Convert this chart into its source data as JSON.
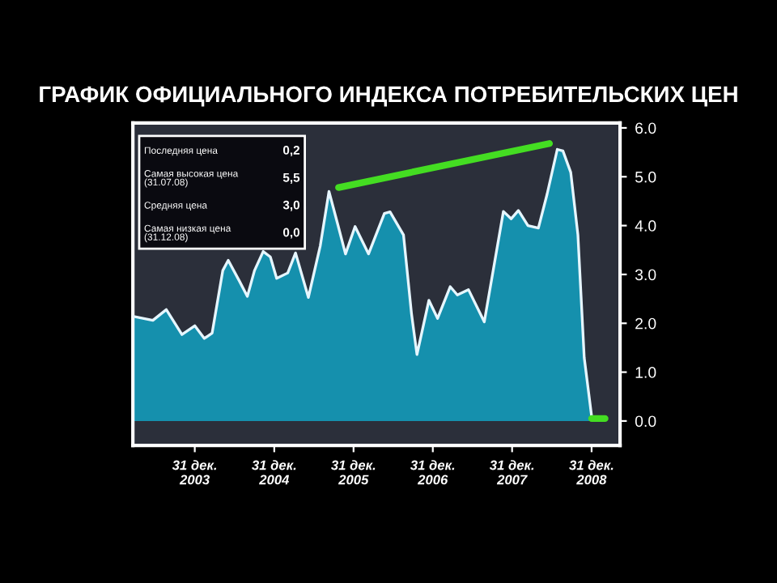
{
  "chart_data": {
    "type": "area",
    "title": "ГРАФИК ОФИЦИАЛЬНОГО ИНДЕКСА ПОТРЕБИТЕЛЬСКИХ ЦЕН",
    "series": [
      {
        "color": "#1590ad",
        "x": [
          "2003-03-25",
          "2003-06-21",
          "2003-08-22",
          "2003-11-02",
          "2003-12-31",
          "2004-02-13",
          "2004-03-20",
          "2004-05-08",
          "2004-06-02",
          "2004-07-24",
          "2004-08-29",
          "2004-10-01",
          "2004-11-10",
          "2004-12-13",
          "2005-01-11",
          "2005-03-03",
          "2005-04-08",
          "2005-06-06",
          "2005-07-31",
          "2005-09-09",
          "2005-10-19",
          "2005-11-24",
          "2006-01-07",
          "2006-03-10",
          "2006-05-22",
          "2006-06-17",
          "2006-08-18",
          "2006-09-24",
          "2006-10-19",
          "2006-12-13",
          "2007-01-22",
          "2007-03-21",
          "2007-04-23",
          "2007-06-13",
          "2007-08-25",
          "2007-11-21",
          "2007-12-27",
          "2008-01-29",
          "2008-03-13",
          "2008-04-30",
          "2008-06-09",
          "2008-07-26",
          "2008-08-21",
          "2008-09-26",
          "2008-10-29",
          "2008-11-27",
          "2008-12-31"
        ],
        "values": [
          2.14,
          2.06,
          2.28,
          1.77,
          1.95,
          1.69,
          1.8,
          3.08,
          3.29,
          2.86,
          2.55,
          3.08,
          3.47,
          3.36,
          2.92,
          3.03,
          3.44,
          2.53,
          3.59,
          4.7,
          4.03,
          3.42,
          3.98,
          3.42,
          4.25,
          4.28,
          3.81,
          2.19,
          1.36,
          2.47,
          2.1,
          2.75,
          2.58,
          2.69,
          2.03,
          4.29,
          4.14,
          4.31,
          4.0,
          3.95,
          4.64,
          5.56,
          5.53,
          5.09,
          3.81,
          1.3,
          0.1
        ]
      },
      {
        "type": "line",
        "color": "#44dd22",
        "x": [
          "2005-10-23",
          "2008-06-20"
        ],
        "values": [
          4.78,
          5.68
        ]
      },
      {
        "type": "line",
        "color": "#44dd22",
        "x": [
          "2008-12-31",
          "2009-03-03"
        ],
        "values": [
          0.05,
          0.05
        ]
      }
    ],
    "xlim": [
      "2003-03-21",
      "2009-05-11"
    ],
    "ylim": [
      -0.5,
      6.1
    ],
    "xticks": [
      {
        "value": "2003-12-31",
        "label": "31 дек.\n2003"
      },
      {
        "value": "2004-12-31",
        "label": "31 дек.\n2004"
      },
      {
        "value": "2005-12-31",
        "label": "31 дек.\n2005"
      },
      {
        "value": "2006-12-31",
        "label": "31 дек.\n2006"
      },
      {
        "value": "2007-12-31",
        "label": "31 дек.\n2007"
      },
      {
        "value": "2008-12-31",
        "label": "31 дек.\n2008"
      }
    ],
    "yticks": [
      {
        "value": 0,
        "label": "0.0"
      },
      {
        "value": 1,
        "label": "1.0"
      },
      {
        "value": 2,
        "label": "2.0"
      },
      {
        "value": 3,
        "label": "3.0"
      },
      {
        "value": 4,
        "label": "4.0"
      },
      {
        "value": 5,
        "label": "5.0"
      },
      {
        "value": 6,
        "label": "6.0"
      }
    ],
    "grid": false,
    "legend": false,
    "annotations": [
      "Последняя цена",
      "0,2",
      "Самая высокая цена\n(31.07.08)",
      "5,5",
      "Средняя цена",
      "3,0",
      "Самая низкая цена\n(31.12.08)",
      "0,0"
    ]
  }
}
